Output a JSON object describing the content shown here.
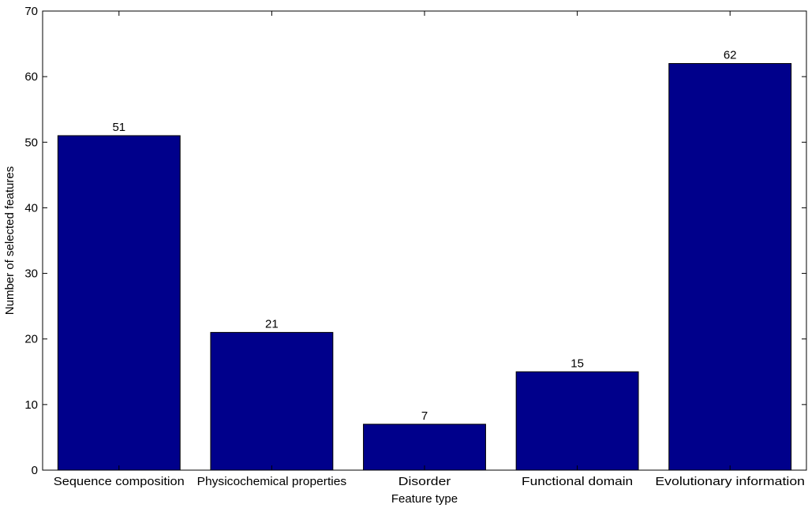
{
  "chart_data": {
    "type": "bar",
    "categories": [
      "Sequence composition",
      "Physicochemical properties",
      "Disorder",
      "Functional domain",
      "Evolutionary information"
    ],
    "values": [
      51,
      21,
      7,
      15,
      62
    ],
    "data_labels": [
      "51",
      "21",
      "7",
      "15",
      "62"
    ],
    "xlabel": "Feature type",
    "ylabel": "Number of selected features",
    "ylim": [
      0,
      70
    ],
    "yticks": [
      0,
      10,
      20,
      30,
      40,
      50,
      60,
      70
    ],
    "ytick_labels": [
      "0",
      "10",
      "20",
      "30",
      "40",
      "50",
      "60",
      "70"
    ],
    "grid": false,
    "bar_color": "#00008b"
  }
}
